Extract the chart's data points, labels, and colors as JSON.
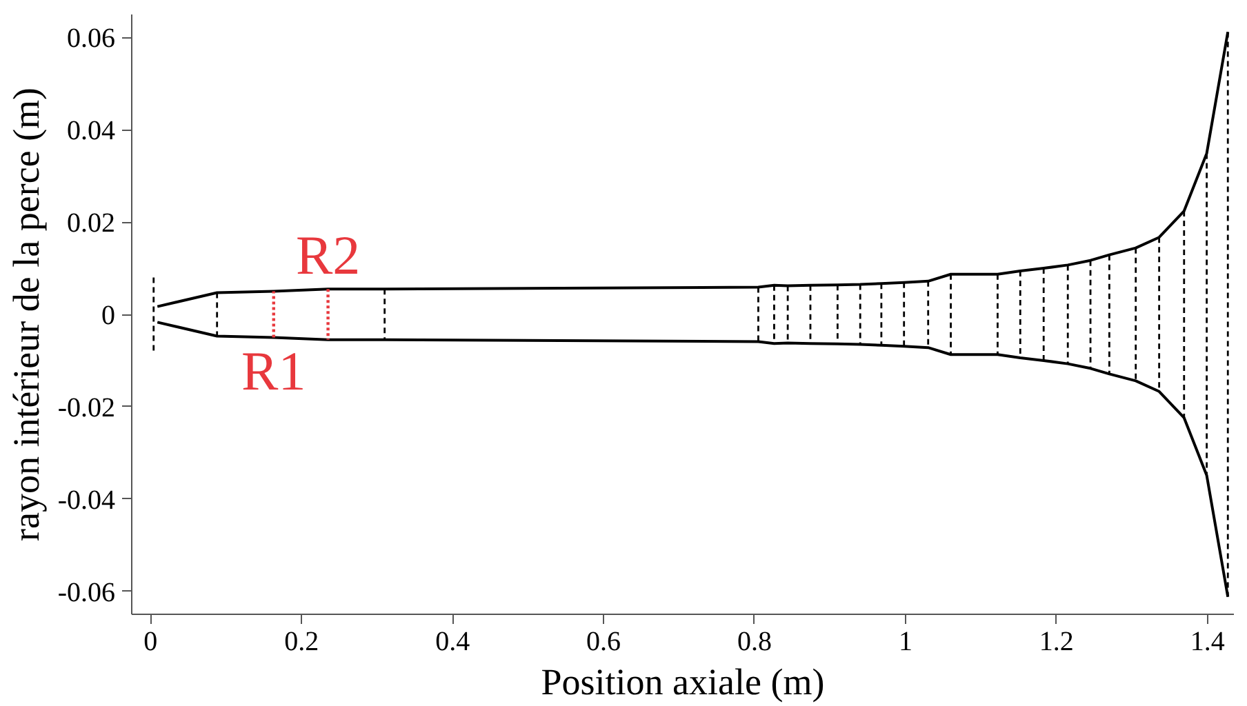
{
  "chart_data": {
    "type": "line",
    "xlabel": "Position axiale (m)",
    "ylabel": "rayon intérieur de la perce (m)",
    "xlim": [
      -0.025,
      1.435
    ],
    "ylim": [
      -0.065,
      0.065
    ],
    "xticks": [
      0,
      0.2,
      0.4,
      0.6,
      0.8,
      1,
      1.2,
      1.4
    ],
    "yticks": [
      -0.06,
      -0.04,
      -0.02,
      0,
      0.02,
      0.04,
      0.06
    ],
    "grid": false,
    "legend": false,
    "marker": "none",
    "series": [
      {
        "color": "#000000",
        "line_style": "solid",
        "x": [
          0.009,
          0.088,
          0.163,
          0.235,
          0.31,
          0.805,
          0.826,
          0.844,
          0.874,
          0.91,
          0.94,
          0.968,
          0.998,
          1.03,
          1.06,
          1.122,
          1.152,
          1.183,
          1.215,
          1.245,
          1.27,
          1.305,
          1.336,
          1.369,
          1.399,
          1.427
        ],
        "values": [
          0.0017,
          0.0047,
          0.005,
          0.0055,
          0.0055,
          0.0059,
          0.0063,
          0.0062,
          0.0063,
          0.0064,
          0.0065,
          0.0067,
          0.0069,
          0.0072,
          0.0087,
          0.0087,
          0.0094,
          0.01,
          0.0107,
          0.0117,
          0.0129,
          0.0144,
          0.0167,
          0.0224,
          0.0349,
          0.0612
        ]
      },
      {
        "color": "#000000",
        "line_style": "solid",
        "x": [
          0.009,
          0.088,
          0.163,
          0.235,
          0.31,
          0.805,
          0.826,
          0.844,
          0.874,
          0.91,
          0.94,
          0.968,
          0.998,
          1.03,
          1.06,
          1.122,
          1.152,
          1.183,
          1.215,
          1.245,
          1.27,
          1.305,
          1.336,
          1.369,
          1.399,
          1.427
        ],
        "values": [
          -0.0017,
          -0.0047,
          -0.005,
          -0.0055,
          -0.0055,
          -0.0059,
          -0.0063,
          -0.0062,
          -0.0063,
          -0.0064,
          -0.0065,
          -0.0067,
          -0.0069,
          -0.0072,
          -0.0087,
          -0.0087,
          -0.0094,
          -0.01,
          -0.0107,
          -0.0117,
          -0.0129,
          -0.0144,
          -0.0167,
          -0.0224,
          -0.0349,
          -0.0612
        ]
      },
      {
        "color": "#000000",
        "line_style": "dashed",
        "x": [
          0.004,
          0.004
        ],
        "values": [
          0.008,
          -0.008
        ]
      },
      {
        "color": "#000000",
        "line_style": "dashed",
        "x": [
          0.088,
          0.088
        ],
        "values": [
          0.0047,
          -0.0047
        ]
      },
      {
        "name": "R1",
        "color": "#e8383d",
        "line_style": "dotted",
        "x": [
          0.163,
          0.163
        ],
        "values": [
          -0.005,
          0.005
        ]
      },
      {
        "name": "R2",
        "color": "#e8383d",
        "line_style": "dotted",
        "x": [
          0.235,
          0.235
        ],
        "values": [
          0.0055,
          -0.0055
        ]
      },
      {
        "color": "#000000",
        "line_style": "dashed",
        "x": [
          0.31,
          0.31
        ],
        "values": [
          0.0055,
          -0.0055
        ]
      },
      {
        "color": "#000000",
        "line_style": "dashed",
        "x": [
          0.805,
          0.805
        ],
        "values": [
          0.0059,
          -0.0059
        ]
      },
      {
        "color": "#000000",
        "line_style": "dashed",
        "x": [
          0.826,
          0.826
        ],
        "values": [
          0.0063,
          -0.0063
        ]
      },
      {
        "color": "#000000",
        "line_style": "dashed",
        "x": [
          0.844,
          0.844
        ],
        "values": [
          0.0062,
          -0.0062
        ]
      },
      {
        "color": "#000000",
        "line_style": "dashed",
        "x": [
          0.874,
          0.874
        ],
        "values": [
          0.0063,
          -0.0063
        ]
      },
      {
        "color": "#000000",
        "line_style": "dashed",
        "x": [
          0.91,
          0.91
        ],
        "values": [
          0.0064,
          -0.0064
        ]
      },
      {
        "color": "#000000",
        "line_style": "dashed",
        "x": [
          0.94,
          0.94
        ],
        "values": [
          0.0065,
          -0.0065
        ]
      },
      {
        "color": "#000000",
        "line_style": "dashed",
        "x": [
          0.968,
          0.968
        ],
        "values": [
          0.0067,
          -0.0067
        ]
      },
      {
        "color": "#000000",
        "line_style": "dashed",
        "x": [
          0.998,
          0.998
        ],
        "values": [
          0.0069,
          -0.0069
        ]
      },
      {
        "color": "#000000",
        "line_style": "dashed",
        "x": [
          1.03,
          1.03
        ],
        "values": [
          0.0072,
          -0.0072
        ]
      },
      {
        "color": "#000000",
        "line_style": "dashed",
        "x": [
          1.06,
          1.06
        ],
        "values": [
          0.0087,
          -0.0087
        ]
      },
      {
        "color": "#000000",
        "line_style": "dashed",
        "x": [
          1.122,
          1.122
        ],
        "values": [
          0.0087,
          -0.0087
        ]
      },
      {
        "color": "#000000",
        "line_style": "dashed",
        "x": [
          1.152,
          1.152
        ],
        "values": [
          0.0094,
          -0.0094
        ]
      },
      {
        "color": "#000000",
        "line_style": "dashed",
        "x": [
          1.183,
          1.183
        ],
        "values": [
          0.01,
          -0.01
        ]
      },
      {
        "color": "#000000",
        "line_style": "dashed",
        "x": [
          1.215,
          1.215
        ],
        "values": [
          0.0107,
          -0.0107
        ]
      },
      {
        "color": "#000000",
        "line_style": "dashed",
        "x": [
          1.245,
          1.245
        ],
        "values": [
          0.0117,
          -0.0117
        ]
      },
      {
        "color": "#000000",
        "line_style": "dashed",
        "x": [
          1.27,
          1.27
        ],
        "values": [
          0.0129,
          -0.0129
        ]
      },
      {
        "color": "#000000",
        "line_style": "dashed",
        "x": [
          1.305,
          1.305
        ],
        "values": [
          0.0144,
          -0.0144
        ]
      },
      {
        "color": "#000000",
        "line_style": "dashed",
        "x": [
          1.336,
          1.336
        ],
        "values": [
          0.0167,
          -0.0167
        ]
      },
      {
        "color": "#000000",
        "line_style": "dashed",
        "x": [
          1.369,
          1.369
        ],
        "values": [
          0.0224,
          -0.0224
        ]
      },
      {
        "color": "#000000",
        "line_style": "dashed",
        "x": [
          1.399,
          1.399
        ],
        "values": [
          0.0349,
          -0.0349
        ]
      },
      {
        "color": "#000000",
        "line_style": "dashed",
        "x": [
          1.427,
          1.427
        ],
        "values": [
          0.0612,
          -0.0612
        ]
      }
    ]
  }
}
